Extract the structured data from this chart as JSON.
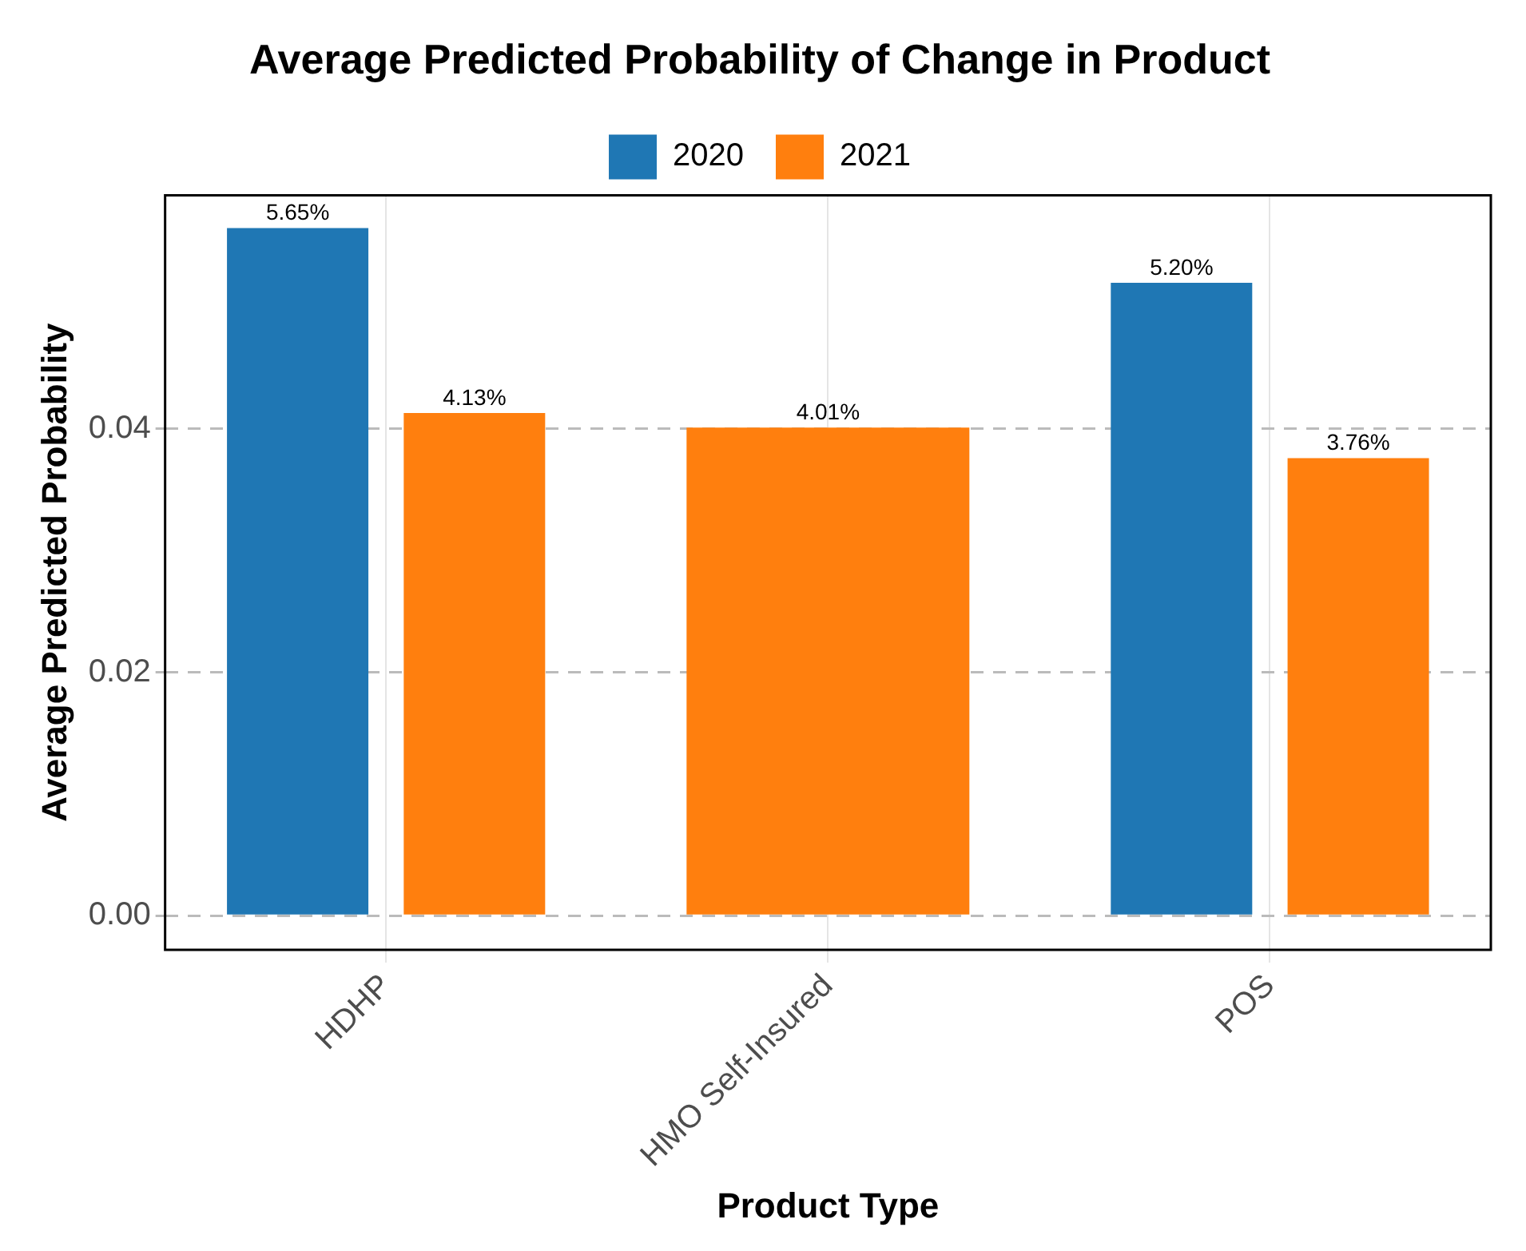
{
  "chart_data": {
    "type": "bar",
    "title": "Average Predicted Probability of Change in Product",
    "xlabel": "Product Type",
    "ylabel": "Average Predicted Probability",
    "categories": [
      "HDHP",
      "HMO Self-Insured",
      "POS"
    ],
    "series": [
      {
        "name": "2020",
        "color": "#1f77b4",
        "values": [
          0.0565,
          null,
          0.052
        ],
        "value_labels": [
          "5.65%",
          null,
          "5.20%"
        ]
      },
      {
        "name": "2021",
        "color": "#ff7f0e",
        "values": [
          0.0413,
          0.0401,
          0.0376
        ],
        "value_labels": [
          "4.13%",
          "4.01%",
          "3.76%"
        ]
      }
    ],
    "ylim": [
      -0.0028,
      0.0592
    ],
    "yticks": [
      {
        "value": 0,
        "label": "0.00"
      },
      {
        "value": 0.02,
        "label": "0.02"
      },
      {
        "value": 0.04,
        "label": "0.04"
      }
    ],
    "grid": true,
    "legend": "top"
  }
}
